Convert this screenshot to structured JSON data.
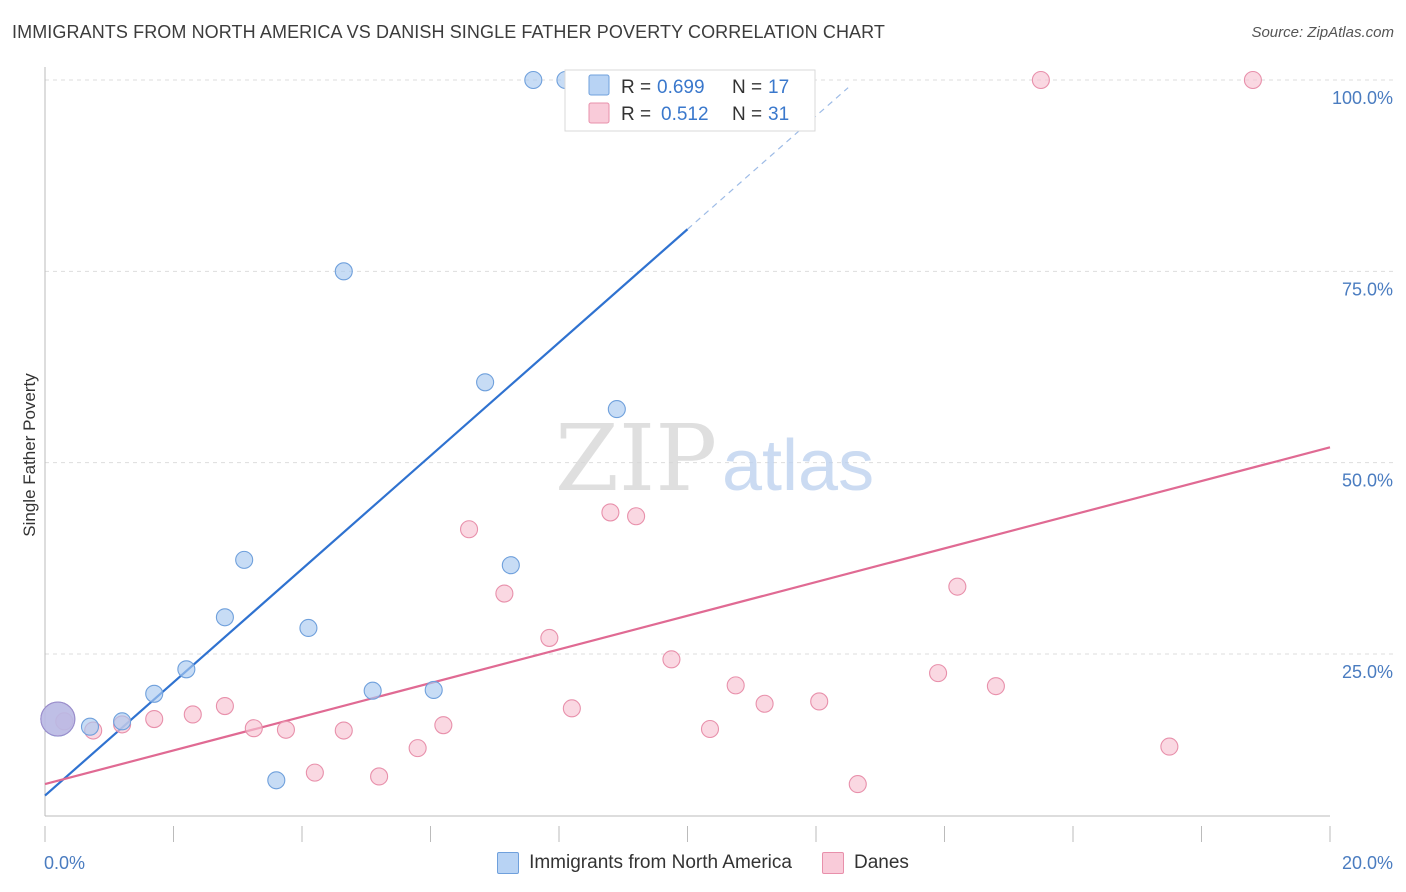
{
  "title": "IMMIGRANTS FROM NORTH AMERICA VS DANISH SINGLE FATHER POVERTY CORRELATION CHART",
  "source": "Source: ZipAtlas.com",
  "watermark": {
    "zip": "ZIP",
    "atlas": "atlas"
  },
  "chart_data": {
    "type": "scatter",
    "ylabel": "Single Father Poverty",
    "xlabel": "",
    "xlim": [
      0,
      20
    ],
    "ylim": [
      0,
      105
    ],
    "x_tick_labels": [
      "0.0%",
      "20.0%"
    ],
    "y_ticks": [
      25,
      50,
      75,
      100
    ],
    "y_tick_labels": [
      "25.0%",
      "50.0%",
      "75.0%",
      "100.0%"
    ],
    "grid": true,
    "legend_position": "top-center",
    "series": [
      {
        "name": "Immigrants from North America",
        "color": "#a9c9f0",
        "stroke": "#6fa0dc",
        "line_color": "#2f72d0",
        "R": "0.699",
        "N": "17",
        "trend": {
          "x0": 0,
          "y0": 6.5,
          "x1": 10,
          "y1": 80.5,
          "x_dash_end": 12.5,
          "y_dash_end": 99
        },
        "points": [
          {
            "x": 0.2,
            "y": 16.5,
            "big": true
          },
          {
            "x": 0.7,
            "y": 15.5
          },
          {
            "x": 1.2,
            "y": 16.2
          },
          {
            "x": 1.7,
            "y": 19.8
          },
          {
            "x": 2.2,
            "y": 23.0
          },
          {
            "x": 2.8,
            "y": 29.8
          },
          {
            "x": 3.1,
            "y": 37.3
          },
          {
            "x": 3.6,
            "y": 8.5
          },
          {
            "x": 4.1,
            "y": 28.4
          },
          {
            "x": 4.65,
            "y": 75.0
          },
          {
            "x": 5.1,
            "y": 20.2
          },
          {
            "x": 6.05,
            "y": 20.3
          },
          {
            "x": 6.85,
            "y": 60.5
          },
          {
            "x": 7.25,
            "y": 36.6
          },
          {
            "x": 7.6,
            "y": 100.0
          },
          {
            "x": 8.1,
            "y": 100.0
          },
          {
            "x": 8.9,
            "y": 57.0
          }
        ]
      },
      {
        "name": "Danes",
        "color": "#f7c3d2",
        "stroke": "#e890ab",
        "line_color": "#e06a93",
        "R": "0.512",
        "N": "31",
        "trend": {
          "x0": 0,
          "y0": 8.0,
          "x1": 20,
          "y1": 52.0
        },
        "points": [
          {
            "x": 0.3,
            "y": 16.2
          },
          {
            "x": 0.75,
            "y": 15.0
          },
          {
            "x": 1.2,
            "y": 15.8
          },
          {
            "x": 1.7,
            "y": 16.5
          },
          {
            "x": 2.3,
            "y": 17.1
          },
          {
            "x": 2.8,
            "y": 18.2
          },
          {
            "x": 3.25,
            "y": 15.3
          },
          {
            "x": 3.75,
            "y": 15.1
          },
          {
            "x": 4.2,
            "y": 9.5
          },
          {
            "x": 4.65,
            "y": 15.0
          },
          {
            "x": 5.2,
            "y": 9.0
          },
          {
            "x": 5.8,
            "y": 12.7
          },
          {
            "x": 6.2,
            "y": 15.7
          },
          {
            "x": 6.6,
            "y": 41.3
          },
          {
            "x": 7.15,
            "y": 32.9
          },
          {
            "x": 7.85,
            "y": 27.1
          },
          {
            "x": 8.2,
            "y": 17.9
          },
          {
            "x": 8.8,
            "y": 43.5
          },
          {
            "x": 9.2,
            "y": 43.0
          },
          {
            "x": 9.75,
            "y": 24.3
          },
          {
            "x": 10.35,
            "y": 15.2
          },
          {
            "x": 10.75,
            "y": 20.9
          },
          {
            "x": 11.2,
            "y": 18.5
          },
          {
            "x": 12.05,
            "y": 18.8
          },
          {
            "x": 12.65,
            "y": 8.0
          },
          {
            "x": 13.9,
            "y": 22.5
          },
          {
            "x": 14.2,
            "y": 33.8
          },
          {
            "x": 14.8,
            "y": 20.8
          },
          {
            "x": 15.5,
            "y": 100.0
          },
          {
            "x": 17.5,
            "y": 12.9
          },
          {
            "x": 18.8,
            "y": 100.0
          }
        ]
      }
    ]
  }
}
